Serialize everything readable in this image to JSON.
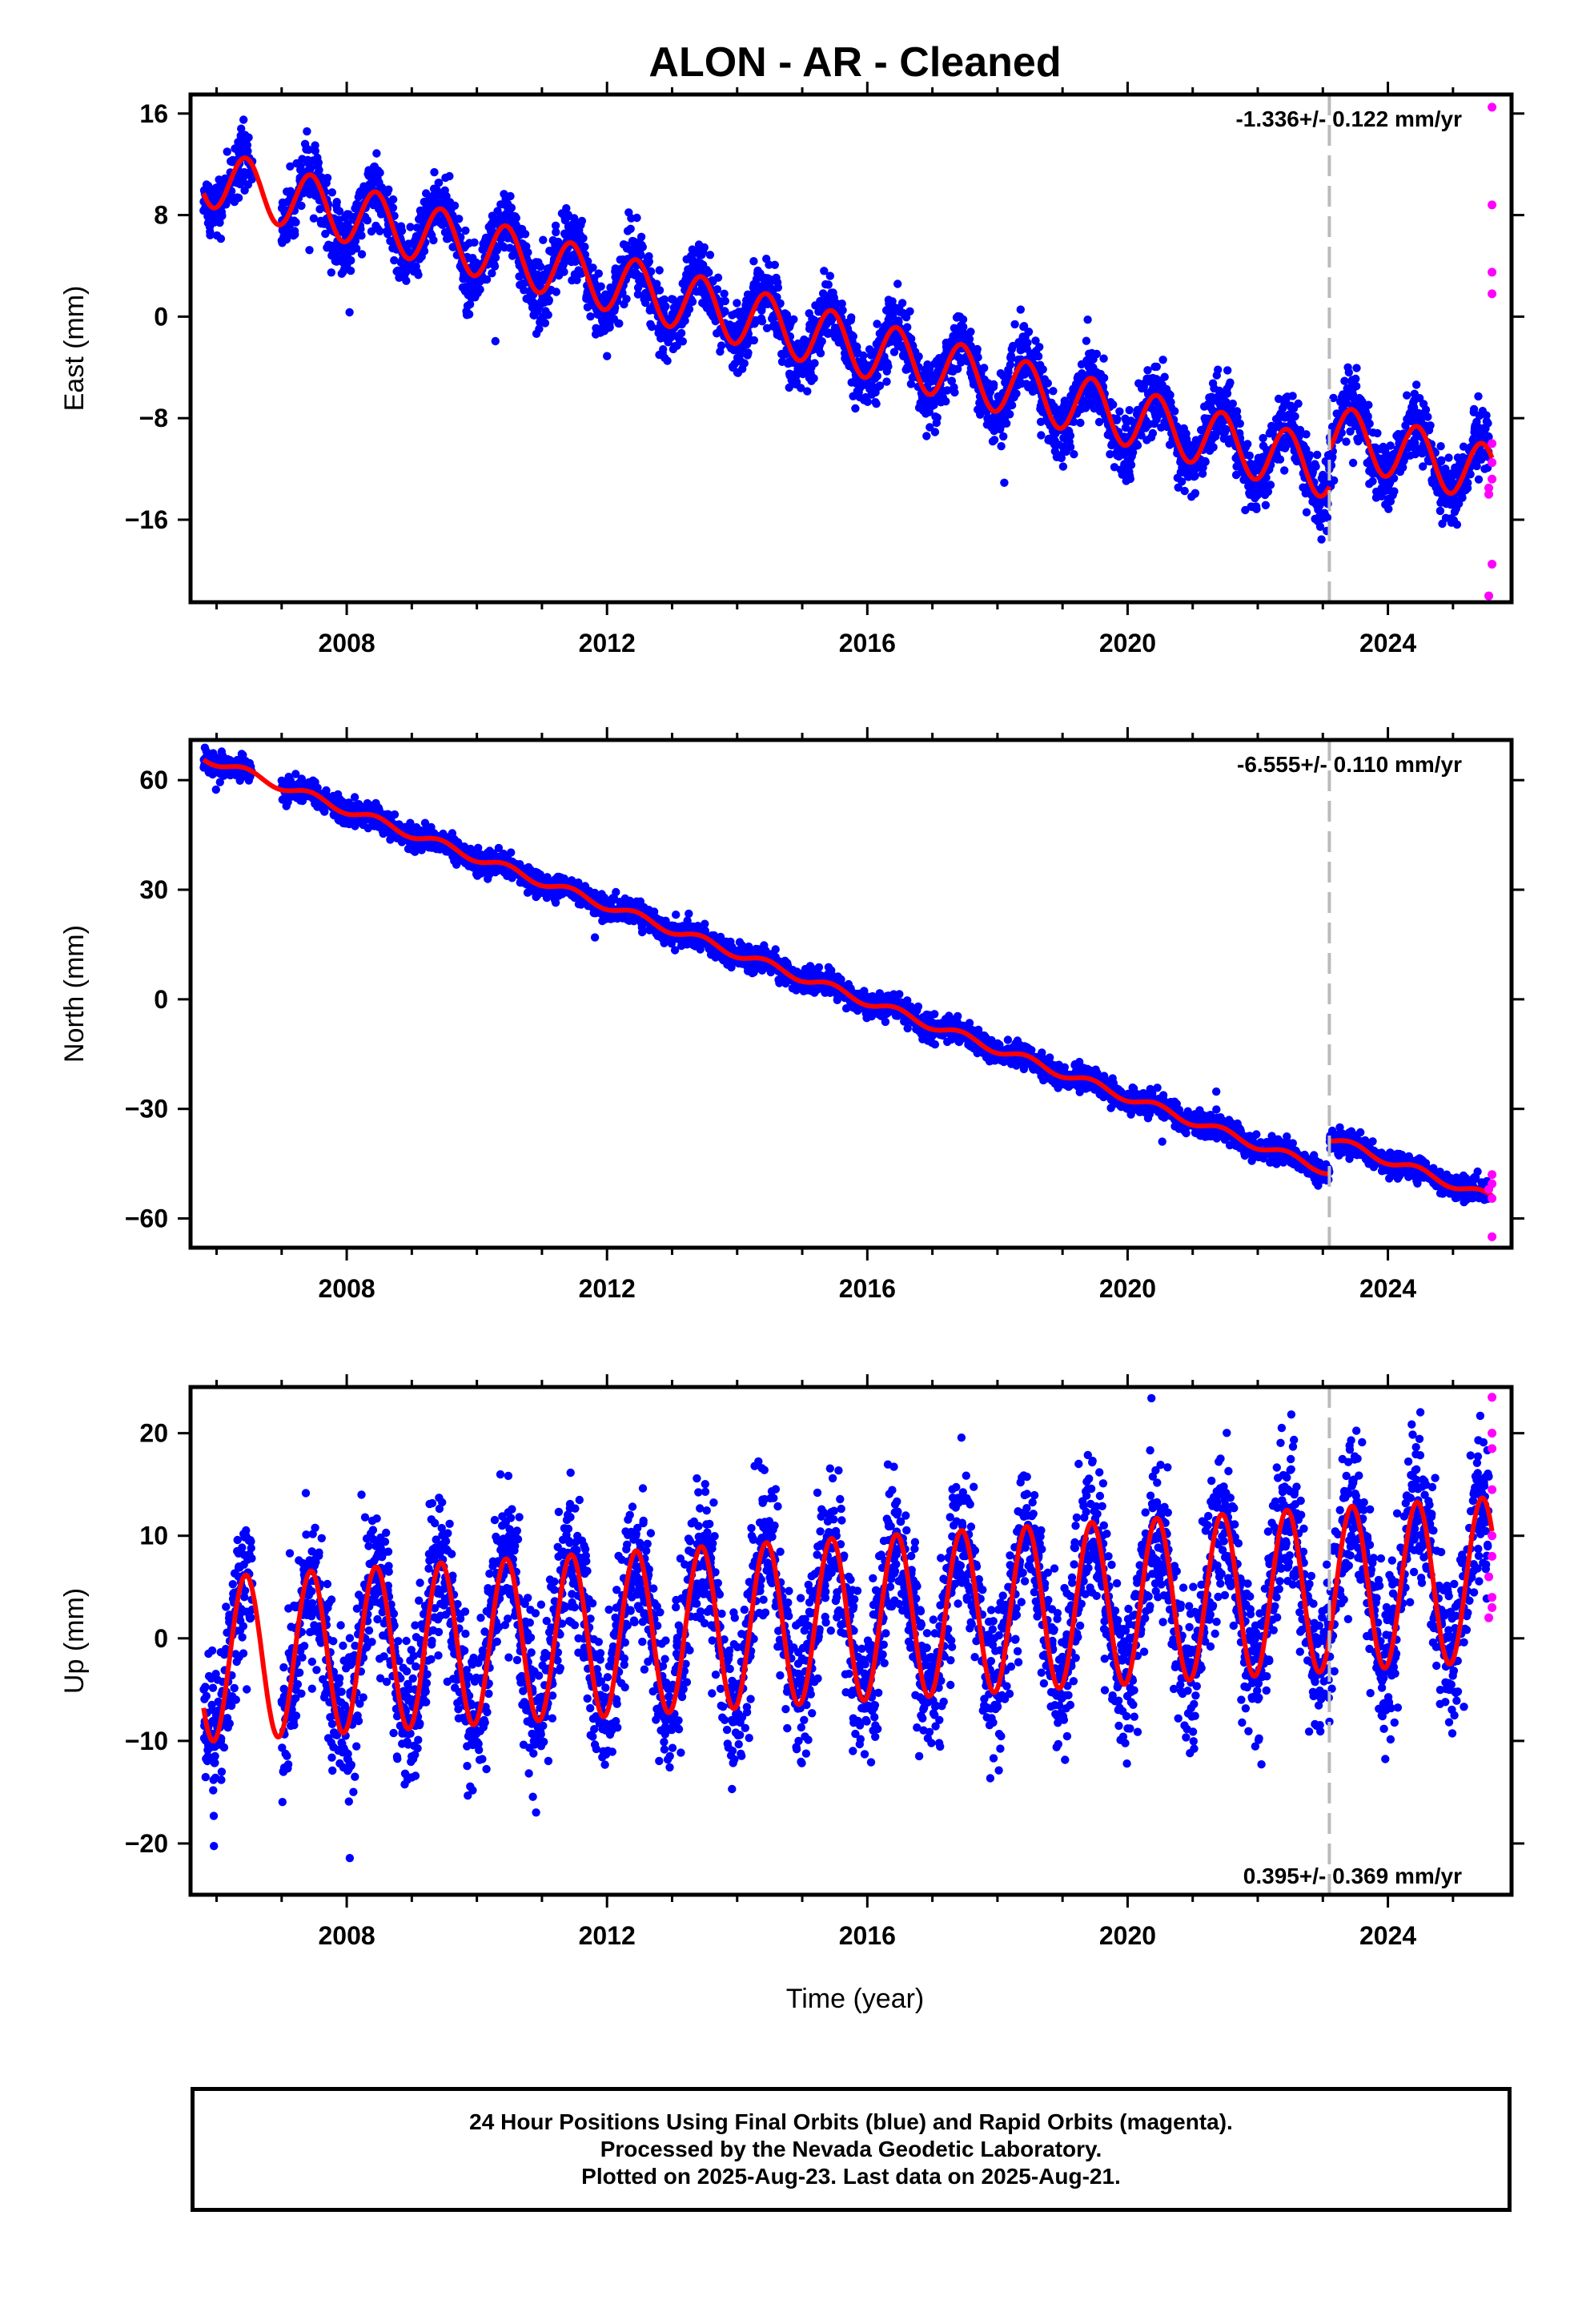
{
  "title": "ALON  - AR - Cleaned",
  "xlabel": "Time (year)",
  "footer": {
    "line1": "24 Hour Positions Using Final Orbits (blue) and Rapid Orbits (magenta).",
    "line2": "Processed by the Nevada Geodetic Laboratory.",
    "line3": "Plotted on 2025-Aug-23. Last data on 2025-Aug-21."
  },
  "colors": {
    "final_orbits": "#0000ff",
    "rapid_orbits": "#ff00ff",
    "model": "#ff0000",
    "discontinuity": "#bbbbbb"
  },
  "chart_data": [
    {
      "type": "scatter",
      "name": "east",
      "ylabel": "East (mm)",
      "rate_label": "-1.336+/- 0.122 mm/yr",
      "rate_position": "top-right",
      "xlim": [
        2005.6,
        2025.9
      ],
      "ylim": [
        -22.5,
        17.5
      ],
      "x_ticks": [
        2008,
        2012,
        2016,
        2020,
        2024
      ],
      "x_tick_labels": [
        "2008",
        "2012",
        "2016",
        "2020",
        "2024"
      ],
      "y_ticks": [
        16,
        8,
        0,
        -8,
        -16
      ],
      "y_tick_labels": [
        "16",
        "8",
        "0",
        "−8",
        "−16"
      ],
      "discontinuity_x": 2023.1,
      "series": [
        {
          "role": "final_orbits",
          "trend": {
            "intercept_at_2006": 10.8,
            "slope_per_yr": -1.336,
            "annual_amplitude": 2.5,
            "noise": 1.2,
            "offset_after_break": 3.0
          },
          "x_range": [
            2005.8,
            2025.55
          ],
          "gap": [
            2006.55,
            2007.0
          ]
        },
        {
          "role": "rapid_orbits",
          "x": [
            2025.6,
            2025.6,
            2025.6,
            2025.6,
            2025.6,
            2025.6,
            2025.6,
            2025.55,
            2025.55,
            2025.6,
            2025.55
          ],
          "y": [
            16.5,
            8.8,
            3.5,
            1.8,
            -10.0,
            -11.5,
            -12.8,
            -13.5,
            -14.0,
            -19.5,
            -22.0
          ]
        },
        {
          "role": "model",
          "segments": [
            {
              "x_range": [
                2005.8,
                2023.1
              ],
              "intercept_at_2006": 10.8,
              "slope_per_yr": -1.336,
              "annual_amplitude": 2.3
            },
            {
              "x_range": [
                2023.1,
                2025.6
              ],
              "intercept_at_2006": 13.7,
              "slope_per_yr": -1.336,
              "annual_amplitude": 2.3
            }
          ]
        }
      ]
    },
    {
      "type": "scatter",
      "name": "north",
      "ylabel": "North (mm)",
      "rate_label": "-6.555+/- 0.110 mm/yr",
      "rate_position": "top-right",
      "xlim": [
        2005.6,
        2025.9
      ],
      "ylim": [
        -68,
        71
      ],
      "x_ticks": [
        2008,
        2012,
        2016,
        2020,
        2024
      ],
      "x_tick_labels": [
        "2008",
        "2012",
        "2016",
        "2020",
        "2024"
      ],
      "y_ticks": [
        60,
        30,
        0,
        -30,
        -60
      ],
      "y_tick_labels": [
        "60",
        "30",
        "0",
        "−30",
        "−60"
      ],
      "discontinuity_x": 2023.1,
      "series": [
        {
          "role": "final_orbits",
          "trend": {
            "intercept_at_2006": 65.0,
            "slope_per_yr": -6.555,
            "annual_amplitude": 1.0,
            "noise": 1.5,
            "offset_after_break": 9.0
          },
          "x_range": [
            2005.8,
            2025.55
          ],
          "gap": [
            2006.55,
            2007.0
          ]
        },
        {
          "role": "rapid_orbits",
          "x": [
            2025.6,
            2025.6,
            2025.55,
            2025.6,
            2025.6
          ],
          "y": [
            -48.0,
            -50.5,
            -52.0,
            -54.5,
            -65.0
          ]
        },
        {
          "role": "model",
          "segments": [
            {
              "x_range": [
                2005.8,
                2023.1
              ],
              "intercept_at_2006": 65.0,
              "slope_per_yr": -6.555,
              "annual_amplitude": 1.2
            },
            {
              "x_range": [
                2023.1,
                2025.6
              ],
              "intercept_at_2006": 74.0,
              "slope_per_yr": -6.555,
              "annual_amplitude": 1.2
            }
          ]
        }
      ]
    },
    {
      "type": "scatter",
      "name": "up",
      "ylabel": "Up (mm)",
      "rate_label": "0.395+/- 0.369 mm/yr",
      "rate_position": "bottom-right",
      "xlim": [
        2005.6,
        2025.9
      ],
      "ylim": [
        -25,
        24.5
      ],
      "x_ticks": [
        2008,
        2012,
        2016,
        2020,
        2024
      ],
      "x_tick_labels": [
        "2008",
        "2012",
        "2016",
        "2020",
        "2024"
      ],
      "y_ticks": [
        20,
        10,
        0,
        -10,
        -20
      ],
      "y_tick_labels": [
        "20",
        "10",
        "0",
        "−10",
        "−20"
      ],
      "discontinuity_x": 2023.1,
      "series": [
        {
          "role": "final_orbits",
          "trend": {
            "intercept_at_2006": -2.0,
            "slope_per_yr": 0.395,
            "annual_amplitude": 7.5,
            "noise": 3.5,
            "offset_after_break": 0
          },
          "x_range": [
            2005.8,
            2025.55
          ],
          "gap": [
            2006.55,
            2007.0
          ]
        },
        {
          "role": "rapid_orbits",
          "x": [
            2025.6,
            2025.6,
            2025.6,
            2025.6,
            2025.6,
            2025.6,
            2025.55,
            2025.6,
            2025.6,
            2025.55
          ],
          "y": [
            23.5,
            20.0,
            18.5,
            14.5,
            10.0,
            8.0,
            6.0,
            4.0,
            3.0,
            2.0
          ]
        },
        {
          "role": "model",
          "segments": [
            {
              "x_range": [
                2005.8,
                2025.6
              ],
              "intercept_at_2006": -2.0,
              "slope_per_yr": 0.395,
              "annual_amplitude": 8.0
            }
          ]
        }
      ]
    }
  ]
}
